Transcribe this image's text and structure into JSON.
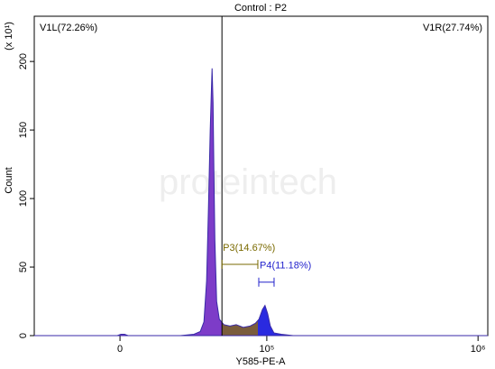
{
  "chart_data": {
    "type": "area",
    "title": "Control : P2",
    "x_label": "Y585-PE-A",
    "y_label": "Count",
    "y_multiplier": "(x 10¹)",
    "watermark": "proteintech",
    "xscale": "biexponential",
    "xlim": [
      -45700,
      1110000
    ],
    "ylim": [
      0,
      233
    ],
    "xticks": [
      0,
      {
        "value": 100000,
        "label": "10⁵"
      },
      {
        "value": 1000000,
        "label": "10⁶"
      }
    ],
    "yticks": [
      0,
      50,
      100,
      150,
      200
    ],
    "x": [
      -45700,
      -1260,
      420,
      2100,
      3780,
      30100,
      38100,
      42100,
      44500,
      46300,
      47500,
      48800,
      49500,
      50100,
      50800,
      51400,
      52100,
      53400,
      55400,
      58900,
      63800,
      69100,
      75400,
      82100,
      87400,
      91200,
      95000,
      97900,
      101000,
      104200,
      108600,
      118200,
      135100,
      1110000
    ],
    "values": [
      0,
      0,
      1,
      1,
      0,
      0,
      1,
      3,
      10,
      40,
      90,
      150,
      175,
      195,
      170,
      120,
      70,
      25,
      12,
      8,
      7,
      8,
      6,
      7,
      9,
      12,
      19,
      22,
      16,
      7,
      2,
      1,
      0,
      0
    ],
    "line_color": "#3a2aa8",
    "divider": {
      "x": 57400,
      "left_label": "V1L(72.26%)",
      "right_label": "V1R(27.74%)",
      "left_fill": "#7d3cc8"
    },
    "gates": [
      {
        "label": "P3(14.67%)",
        "range": [
          57400,
          90000
        ],
        "y": 52,
        "color": "#7a6a00",
        "fill": "#7a5c3c"
      },
      {
        "label": "P4(11.18%)",
        "range": [
          91000,
          108800
        ],
        "y": 39,
        "color": "#2222cc",
        "fill": "#2a2ae0"
      }
    ]
  }
}
